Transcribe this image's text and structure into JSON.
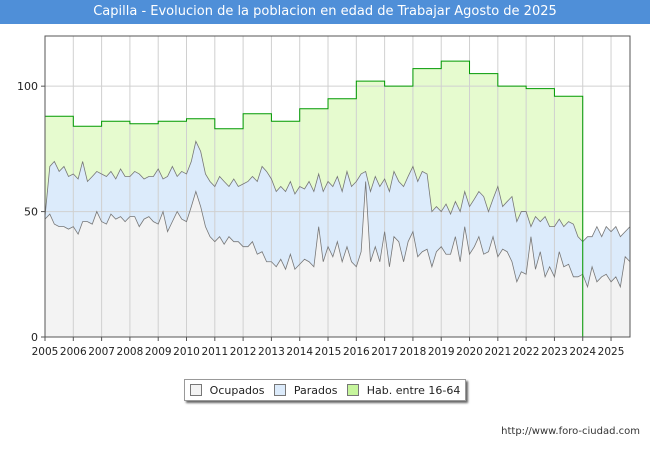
{
  "header": {
    "title": "Capilla - Evolucion de la poblacion en edad de Trabajar Agosto de 2025"
  },
  "footer": {
    "url": "http://www.foro-ciudad.com"
  },
  "chart_data": {
    "type": "area",
    "title": "Capilla - Evolucion de la poblacion en edad de Trabajar Agosto de 2025",
    "xlim": [
      2005,
      2025.67
    ],
    "ylim": [
      0,
      120
    ],
    "y_ticks": [
      0,
      50,
      100
    ],
    "x_ticks": [
      "2005",
      "2006",
      "2007",
      "2008",
      "2009",
      "2010",
      "2011",
      "2012",
      "2013",
      "2014",
      "2015",
      "2016",
      "2017",
      "2018",
      "2019",
      "2020",
      "2021",
      "2022",
      "2023",
      "2024",
      "2025"
    ],
    "grid": true,
    "legend_position": "bottom-center",
    "colors": {
      "ocupados": "#f3f3f3",
      "parados": "#dcebfb",
      "hab": "#e6fbcf",
      "hab_line": "#009a00",
      "line": "#777777"
    },
    "series": [
      {
        "name": "Hab. entre 16-64",
        "type": "step",
        "x": [
          2005,
          2006,
          2007,
          2008,
          2009,
          2010,
          2011,
          2012,
          2013,
          2014,
          2015,
          2016,
          2017,
          2018,
          2019,
          2020,
          2021,
          2022,
          2023,
          2024
        ],
        "values": [
          88,
          84,
          86,
          85,
          86,
          87,
          83,
          89,
          86,
          91,
          95,
          102,
          100,
          107,
          110,
          105,
          100,
          99,
          96,
          0
        ]
      },
      {
        "name": "Parados",
        "type": "line",
        "x": [
          2005,
          2005.17,
          2005.33,
          2005.5,
          2005.67,
          2005.83,
          2006,
          2006.17,
          2006.33,
          2006.5,
          2006.67,
          2006.83,
          2007,
          2007.17,
          2007.33,
          2007.5,
          2007.67,
          2007.83,
          2008,
          2008.17,
          2008.33,
          2008.5,
          2008.67,
          2008.83,
          2009,
          2009.17,
          2009.33,
          2009.5,
          2009.67,
          2009.83,
          2010,
          2010.17,
          2010.33,
          2010.5,
          2010.67,
          2010.83,
          2011,
          2011.17,
          2011.33,
          2011.5,
          2011.67,
          2011.83,
          2012,
          2012.17,
          2012.33,
          2012.5,
          2012.67,
          2012.83,
          2013,
          2013.17,
          2013.33,
          2013.5,
          2013.67,
          2013.83,
          2014,
          2014.17,
          2014.33,
          2014.5,
          2014.67,
          2014.83,
          2015,
          2015.17,
          2015.33,
          2015.5,
          2015.67,
          2015.83,
          2016,
          2016.17,
          2016.33,
          2016.5,
          2016.67,
          2016.83,
          2017,
          2017.17,
          2017.33,
          2017.5,
          2017.67,
          2017.83,
          2018,
          2018.17,
          2018.33,
          2018.5,
          2018.67,
          2018.83,
          2019,
          2019.17,
          2019.33,
          2019.5,
          2019.67,
          2019.83,
          2020,
          2020.17,
          2020.33,
          2020.5,
          2020.67,
          2020.83,
          2021,
          2021.17,
          2021.33,
          2021.5,
          2021.67,
          2021.83,
          2022,
          2022.17,
          2022.33,
          2022.5,
          2022.67,
          2022.83,
          2023,
          2023.17,
          2023.33,
          2023.5,
          2023.67,
          2023.83,
          2024,
          2024.17,
          2024.33,
          2024.5,
          2024.67,
          2024.83,
          2025,
          2025.17,
          2025.33,
          2025.5,
          2025.67
        ],
        "values": [
          48,
          68,
          70,
          66,
          68,
          64,
          65,
          63,
          70,
          62,
          64,
          66,
          65,
          64,
          66,
          63,
          67,
          64,
          64,
          66,
          65,
          63,
          64,
          64,
          67,
          63,
          64,
          68,
          64,
          66,
          65,
          70,
          78,
          74,
          65,
          62,
          60,
          64,
          62,
          60,
          63,
          60,
          61,
          62,
          64,
          62,
          68,
          66,
          63,
          58,
          60,
          58,
          62,
          57,
          60,
          59,
          62,
          58,
          65,
          58,
          62,
          60,
          64,
          58,
          66,
          60,
          62,
          65,
          66,
          58,
          64,
          60,
          63,
          58,
          66,
          62,
          60,
          64,
          68,
          62,
          66,
          65,
          50,
          52,
          50,
          53,
          49,
          54,
          50,
          58,
          52,
          55,
          58,
          56,
          50,
          55,
          60,
          52,
          54,
          56,
          46,
          50,
          50,
          44,
          48,
          46,
          48,
          44,
          44,
          47,
          44,
          46,
          45,
          40,
          38,
          40,
          40,
          44,
          40,
          44,
          42,
          44,
          40,
          42,
          44
        ]
      },
      {
        "name": "Ocupados",
        "type": "line",
        "x": [
          2005,
          2005.17,
          2005.33,
          2005.5,
          2005.67,
          2005.83,
          2006,
          2006.17,
          2006.33,
          2006.5,
          2006.67,
          2006.83,
          2007,
          2007.17,
          2007.33,
          2007.5,
          2007.67,
          2007.83,
          2008,
          2008.17,
          2008.33,
          2008.5,
          2008.67,
          2008.83,
          2009,
          2009.17,
          2009.33,
          2009.5,
          2009.67,
          2009.83,
          2010,
          2010.17,
          2010.33,
          2010.5,
          2010.67,
          2010.83,
          2011,
          2011.17,
          2011.33,
          2011.5,
          2011.67,
          2011.83,
          2012,
          2012.17,
          2012.33,
          2012.5,
          2012.67,
          2012.83,
          2013,
          2013.17,
          2013.33,
          2013.5,
          2013.67,
          2013.83,
          2014,
          2014.17,
          2014.33,
          2014.5,
          2014.67,
          2014.83,
          2015,
          2015.17,
          2015.33,
          2015.5,
          2015.67,
          2015.83,
          2016,
          2016.17,
          2016.33,
          2016.5,
          2016.67,
          2016.83,
          2017,
          2017.17,
          2017.33,
          2017.5,
          2017.67,
          2017.83,
          2018,
          2018.17,
          2018.33,
          2018.5,
          2018.67,
          2018.83,
          2019,
          2019.17,
          2019.33,
          2019.5,
          2019.67,
          2019.83,
          2020,
          2020.17,
          2020.33,
          2020.5,
          2020.67,
          2020.83,
          2021,
          2021.17,
          2021.33,
          2021.5,
          2021.67,
          2021.83,
          2022,
          2022.17,
          2022.33,
          2022.5,
          2022.67,
          2022.83,
          2023,
          2023.17,
          2023.33,
          2023.5,
          2023.67,
          2023.83,
          2024,
          2024.17,
          2024.33,
          2024.5,
          2024.67,
          2024.83,
          2025,
          2025.17,
          2025.33,
          2025.5,
          2025.67
        ],
        "values": [
          47,
          49,
          45,
          44,
          44,
          43,
          44,
          41,
          46,
          46,
          45,
          50,
          46,
          45,
          49,
          47,
          48,
          46,
          48,
          48,
          44,
          47,
          48,
          46,
          45,
          50,
          42,
          46,
          50,
          47,
          46,
          52,
          58,
          52,
          44,
          40,
          38,
          40,
          37,
          40,
          38,
          38,
          36,
          36,
          38,
          33,
          34,
          30,
          30,
          28,
          31,
          27,
          33,
          27,
          29,
          31,
          30,
          28,
          44,
          30,
          36,
          32,
          38,
          30,
          36,
          30,
          28,
          34,
          62,
          30,
          36,
          30,
          42,
          28,
          40,
          38,
          30,
          38,
          42,
          32,
          34,
          35,
          28,
          34,
          36,
          33,
          33,
          40,
          30,
          44,
          33,
          36,
          40,
          33,
          34,
          40,
          32,
          35,
          34,
          30,
          22,
          26,
          25,
          40,
          27,
          34,
          24,
          28,
          24,
          34,
          28,
          29,
          24,
          24,
          25,
          20,
          28,
          22,
          24,
          25,
          22,
          24,
          20,
          32,
          30
        ]
      }
    ]
  },
  "legend": {
    "items": [
      {
        "label": "Ocupados",
        "color": "#f3f3f3"
      },
      {
        "label": "Parados",
        "color": "#dcebfb"
      },
      {
        "label": "Hab. entre 16-64",
        "color": "#c6f59c"
      }
    ]
  }
}
